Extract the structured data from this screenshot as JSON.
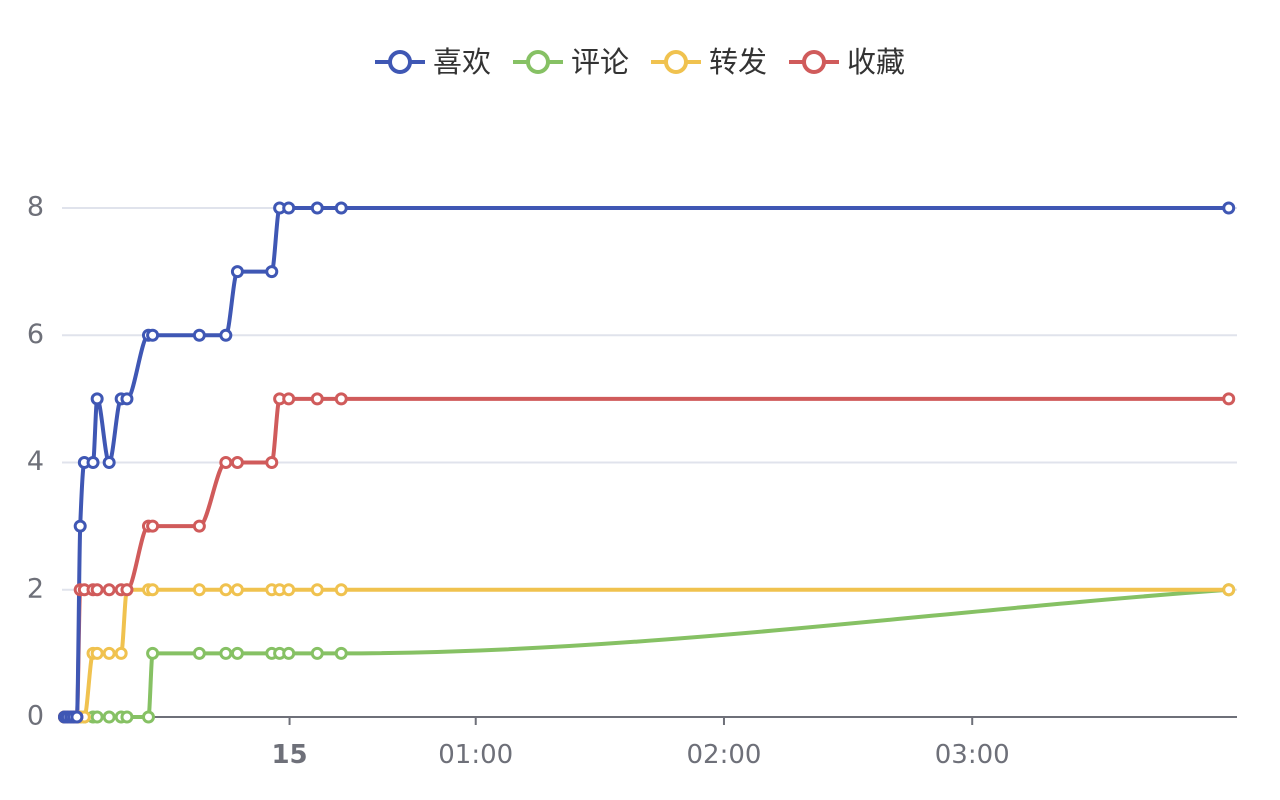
{
  "chart_data": {
    "type": "line",
    "smooth": true,
    "title": "",
    "xlabel": "",
    "ylabel": "",
    "ylim": [
      0,
      8
    ],
    "yticks": [
      0,
      2,
      4,
      6,
      8
    ],
    "grid": "horizontal",
    "legend_position": "top-center",
    "x_tick_labels": [
      {
        "t": 15,
        "label": "15",
        "bold": true
      },
      {
        "t": 60,
        "label": "01:00",
        "bold": false
      },
      {
        "t": 120,
        "label": "02:00",
        "bold": false
      },
      {
        "t": 180,
        "label": "03:00",
        "bold": false
      }
    ],
    "x_unit": "minutes",
    "xlim": [
      -40,
      244
    ],
    "series": [
      {
        "name": "喜欢",
        "color": "#3f57b4",
        "points": [
          [
            -39.4,
            0
          ],
          [
            -38.7,
            0
          ],
          [
            -37.9,
            0
          ],
          [
            -37.2,
            0
          ],
          [
            -36.4,
            0
          ],
          [
            -35.6,
            3
          ],
          [
            -34.6,
            4
          ],
          [
            -32.5,
            4
          ],
          [
            -31.5,
            5
          ],
          [
            -28.6,
            4
          ],
          [
            -25.7,
            5
          ],
          [
            -24.3,
            5
          ],
          [
            -19.1,
            6
          ],
          [
            -18.1,
            6
          ],
          [
            -6.8,
            6
          ],
          [
            -0.4,
            6
          ],
          [
            2.4,
            7
          ],
          [
            10.7,
            7
          ],
          [
            12.6,
            8
          ],
          [
            14.8,
            8
          ],
          [
            21.7,
            8
          ],
          [
            27.5,
            8
          ],
          [
            242.0,
            8
          ]
        ]
      },
      {
        "name": "评论",
        "color": "#86c164",
        "points": [
          [
            -39.4,
            0
          ],
          [
            -38.7,
            0
          ],
          [
            -37.9,
            0
          ],
          [
            -37.2,
            0
          ],
          [
            -36.4,
            0
          ],
          [
            -35.6,
            0
          ],
          [
            -34.6,
            0
          ],
          [
            -32.5,
            0
          ],
          [
            -31.5,
            0
          ],
          [
            -28.6,
            0
          ],
          [
            -25.7,
            0
          ],
          [
            -24.3,
            0
          ],
          [
            -19.1,
            0
          ],
          [
            -18.1,
            1
          ],
          [
            -6.8,
            1
          ],
          [
            -0.4,
            1
          ],
          [
            2.4,
            1
          ],
          [
            10.7,
            1
          ],
          [
            12.6,
            1
          ],
          [
            14.8,
            1
          ],
          [
            21.7,
            1
          ],
          [
            27.5,
            1
          ],
          [
            242.0,
            2
          ]
        ]
      },
      {
        "name": "转发",
        "color": "#f0c24f",
        "points": [
          [
            -39.4,
            0
          ],
          [
            -38.7,
            0
          ],
          [
            -37.9,
            0
          ],
          [
            -37.2,
            0
          ],
          [
            -36.4,
            0
          ],
          [
            -35.6,
            0
          ],
          [
            -34.6,
            0
          ],
          [
            -32.5,
            1
          ],
          [
            -31.5,
            1
          ],
          [
            -28.6,
            1
          ],
          [
            -25.7,
            1
          ],
          [
            -24.3,
            2
          ],
          [
            -19.1,
            2
          ],
          [
            -18.1,
            2
          ],
          [
            -6.8,
            2
          ],
          [
            -0.4,
            2
          ],
          [
            2.4,
            2
          ],
          [
            10.7,
            2
          ],
          [
            12.6,
            2
          ],
          [
            14.8,
            2
          ],
          [
            21.7,
            2
          ],
          [
            27.5,
            2
          ],
          [
            242.0,
            2
          ]
        ]
      },
      {
        "name": "收藏",
        "color": "#d05b5b",
        "points": [
          [
            -39.4,
            0
          ],
          [
            -38.7,
            0
          ],
          [
            -37.9,
            0
          ],
          [
            -37.2,
            0
          ],
          [
            -36.4,
            0
          ],
          [
            -35.6,
            2
          ],
          [
            -34.6,
            2
          ],
          [
            -32.5,
            2
          ],
          [
            -31.5,
            2
          ],
          [
            -28.6,
            2
          ],
          [
            -25.7,
            2
          ],
          [
            -24.3,
            2
          ],
          [
            -19.1,
            3
          ],
          [
            -18.1,
            3
          ],
          [
            -6.8,
            3
          ],
          [
            -0.4,
            4
          ],
          [
            2.4,
            4
          ],
          [
            10.7,
            4
          ],
          [
            12.6,
            5
          ],
          [
            14.8,
            5
          ],
          [
            21.7,
            5
          ],
          [
            27.5,
            5
          ],
          [
            242.0,
            5
          ]
        ]
      }
    ]
  }
}
